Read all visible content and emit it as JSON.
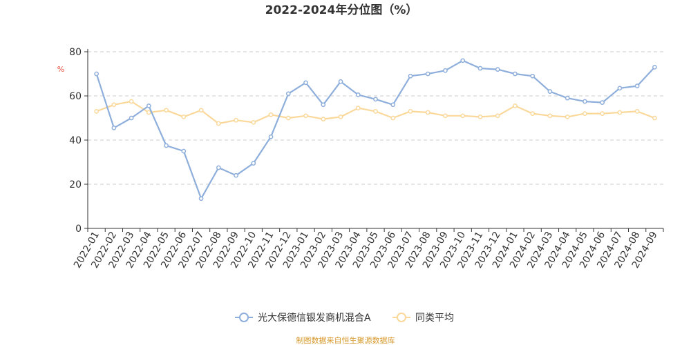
{
  "chart_data": {
    "type": "line",
    "title": "2022-2024年分位图（%）",
    "y_unit": "%",
    "ylim": [
      0,
      80
    ],
    "y_ticks": [
      "0",
      "20",
      "40",
      "60",
      "80"
    ],
    "grid": true,
    "legend_position": "bottom",
    "categories": [
      "2022-01",
      "2022-02",
      "2022-03",
      "2022-04",
      "2022-05",
      "2022-06",
      "2022-07",
      "2022-08",
      "2022-09",
      "2022-10",
      "2022-11",
      "2022-12",
      "2023-01",
      "2023-02",
      "2023-03",
      "2023-04",
      "2023-05",
      "2023-06",
      "2023-07",
      "2023-08",
      "2023-09",
      "2023-10",
      "2023-11",
      "2023-12",
      "2024-01",
      "2024-02",
      "2024-03",
      "2024-04",
      "2024-05",
      "2024-06",
      "2024-07",
      "2024-08",
      "2024-09"
    ],
    "series": [
      {
        "name": "光大保德信银发商机混合A",
        "color": "#8eaedb",
        "values": [
          70.0,
          45.5,
          50.0,
          55.5,
          37.5,
          35.0,
          13.5,
          27.5,
          24.0,
          29.5,
          41.5,
          61.0,
          66.0,
          56.0,
          66.5,
          60.5,
          58.5,
          56.0,
          69.0,
          70.0,
          71.5,
          76.0,
          72.5,
          72.0,
          70.0,
          69.0,
          62.0,
          59.0,
          57.5,
          57.0,
          63.5,
          64.5,
          73.0
        ]
      },
      {
        "name": "同类平均",
        "color": "#fad89a",
        "values": [
          53.0,
          56.0,
          57.5,
          52.5,
          53.5,
          50.5,
          53.5,
          47.5,
          49.0,
          48.0,
          51.5,
          50.0,
          51.0,
          49.5,
          50.5,
          54.5,
          53.0,
          50.0,
          53.0,
          52.5,
          51.0,
          51.0,
          50.5,
          51.0,
          55.5,
          52.0,
          51.0,
          50.5,
          52.0,
          52.0,
          52.5,
          53.0,
          50.0
        ]
      }
    ],
    "axis_color": "#333333",
    "unit_color": "#e74c3c"
  },
  "source_text": "制图数据来自恒生聚源数据库",
  "source_color": "#d79a2e"
}
